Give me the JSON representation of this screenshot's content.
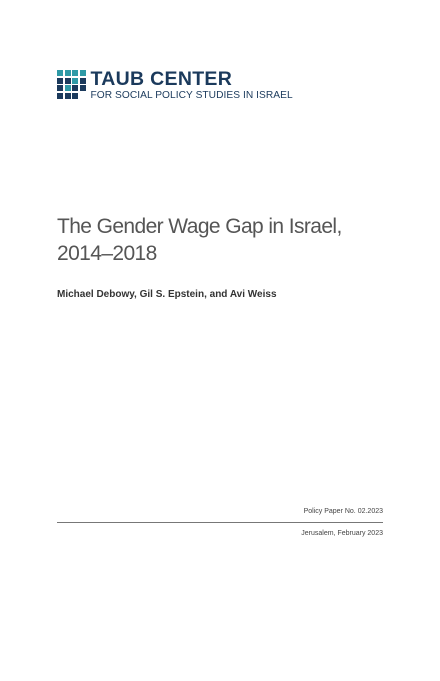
{
  "logo": {
    "title": "TAUB CENTER",
    "subtitle": "FOR SOCIAL POLICY STUDIES IN ISRAEL",
    "colors": {
      "navy": "#1b3a5c",
      "teal": "#2e9aa6"
    }
  },
  "document": {
    "title_line1": "The Gender Wage Gap in Israel,",
    "title_line2": "2014–2018",
    "authors": "Michael Debowy, Gil S. Epstein, and Avi Weiss"
  },
  "footer": {
    "policy_paper": "Policy Paper No. 02.2023",
    "place_date": "Jerusalem, February 2023"
  }
}
